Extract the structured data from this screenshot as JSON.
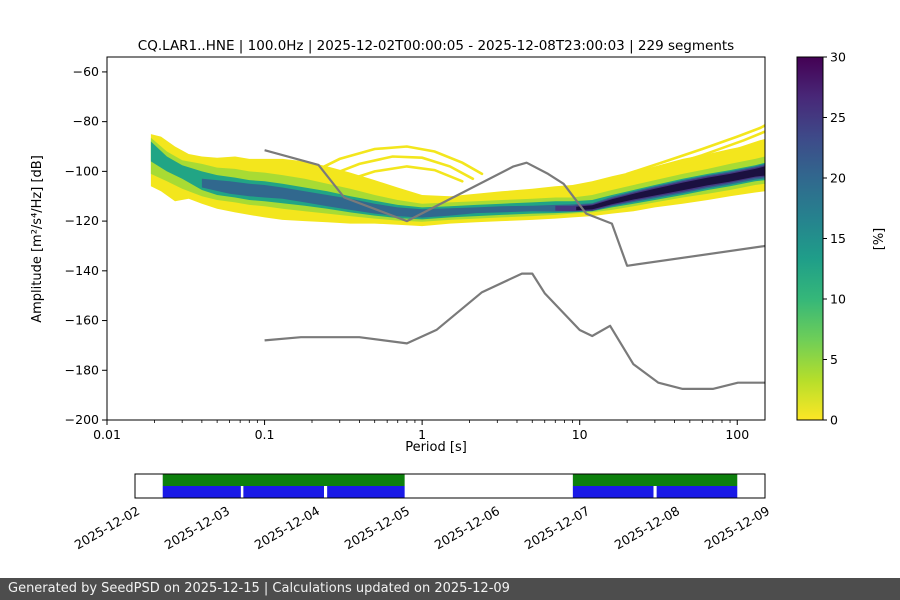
{
  "footer_text": "Generated by SeedPSD on 2025-12-15 | Calculations updated on 2025-12-09",
  "chart_data": {
    "type": "heatmap",
    "title": "CQ.LAR1..HNE | 100.0Hz | 2025-12-02T00:00:05 - 2025-12-08T23:00:03 | 229 segments",
    "station_id": "CQ.LAR1..HNE",
    "sampling_rate_hz": 100.0,
    "time_range": [
      "2025-12-02T00:00:05",
      "2025-12-08T23:00:03"
    ],
    "segments": 229,
    "xlabel": "Period [s]",
    "ylabel": "Amplitude [m²/s⁴/Hz] [dB]",
    "xscale": "log",
    "xlim": [
      0.01,
      150
    ],
    "ylim": [
      -200,
      -54
    ],
    "x_ticks": [
      0.01,
      0.1,
      1,
      10,
      100
    ],
    "x_tick_labels": [
      "0.01",
      "0.1",
      "1",
      "10",
      "100"
    ],
    "y_ticks": [
      -60,
      -80,
      -100,
      -120,
      -140,
      -160,
      -180,
      -200
    ],
    "y_tick_labels": [
      "−60",
      "−80",
      "−100",
      "−120",
      "−140",
      "−160",
      "−180",
      "−200"
    ],
    "colorbar": {
      "label": "[%]",
      "min": 0,
      "max": 30,
      "ticks": [
        0,
        5,
        10,
        15,
        20,
        25,
        30
      ],
      "gradient_top_to_bottom": [
        "#440154",
        "#482878",
        "#3e4a89",
        "#31688e",
        "#26828e",
        "#1f9e89",
        "#35b779",
        "#6ece58",
        "#b5de2b",
        "#fde725"
      ]
    },
    "noise_models": {
      "color": "#7a7a7a",
      "high": [
        [
          0.1,
          -91.5
        ],
        [
          0.22,
          -97.4
        ],
        [
          0.32,
          -110.5
        ],
        [
          0.8,
          -120.0
        ],
        [
          3.8,
          -98.0
        ],
        [
          4.6,
          -96.5
        ],
        [
          6.3,
          -101.0
        ],
        [
          7.9,
          -105.0
        ],
        [
          11.0,
          -117.0
        ],
        [
          16.0,
          -121.0
        ],
        [
          20.0,
          -138.0
        ],
        [
          150,
          -130.0
        ]
      ],
      "low": [
        [
          0.1,
          -168.0
        ],
        [
          0.17,
          -166.7
        ],
        [
          0.4,
          -166.7
        ],
        [
          0.8,
          -169.2
        ],
        [
          1.24,
          -163.7
        ],
        [
          2.4,
          -148.6
        ],
        [
          4.3,
          -141.1
        ],
        [
          5.0,
          -141.1
        ],
        [
          6.0,
          -149.0
        ],
        [
          10.0,
          -163.8
        ],
        [
          12.0,
          -166.2
        ],
        [
          15.6,
          -162.1
        ],
        [
          21.9,
          -177.5
        ],
        [
          31.6,
          -185.0
        ],
        [
          45.0,
          -187.5
        ],
        [
          70.0,
          -187.5
        ],
        [
          101.0,
          -185.0
        ],
        [
          150.0,
          -185.0
        ]
      ]
    },
    "curve_color": "#f3e61d",
    "ppsd_layers": [
      {
        "name": "outer-1pct",
        "color": "#f3e61d",
        "points": [
          [
            0.019,
            -85,
            -106
          ],
          [
            0.022,
            -86,
            -108
          ],
          [
            0.027,
            -90,
            -112
          ],
          [
            0.033,
            -93,
            -111
          ],
          [
            0.04,
            -94,
            -113
          ],
          [
            0.05,
            -94.5,
            -115
          ],
          [
            0.065,
            -94,
            -116.5
          ],
          [
            0.08,
            -95,
            -117.5
          ],
          [
            0.1,
            -95,
            -118.5
          ],
          [
            0.13,
            -95,
            -119.5
          ],
          [
            0.18,
            -96,
            -120
          ],
          [
            0.25,
            -98,
            -120.5
          ],
          [
            0.35,
            -100.5,
            -121
          ],
          [
            0.5,
            -103.5,
            -121
          ],
          [
            0.7,
            -106.5,
            -121.5
          ],
          [
            1.0,
            -109.5,
            -122
          ],
          [
            1.5,
            -110,
            -121
          ],
          [
            2.2,
            -109,
            -120.5
          ],
          [
            3.2,
            -108,
            -120
          ],
          [
            5,
            -107,
            -119.5
          ],
          [
            7,
            -106,
            -119
          ],
          [
            9,
            -105.5,
            -118.5
          ],
          [
            12,
            -104,
            -118
          ],
          [
            16,
            -102,
            -117
          ],
          [
            22,
            -100,
            -116
          ],
          [
            30,
            -98,
            -114.5
          ],
          [
            45,
            -95,
            -113
          ],
          [
            65,
            -93,
            -111.5
          ],
          [
            90,
            -91,
            -110
          ],
          [
            130,
            -89,
            -108.5
          ],
          [
            150,
            -87.5,
            -108
          ]
        ]
      },
      {
        "name": "green-6pct",
        "color": "#a8db34",
        "points": [
          [
            0.019,
            -86.5,
            -101
          ],
          [
            0.024,
            -92,
            -104
          ],
          [
            0.03,
            -95.5,
            -107
          ],
          [
            0.04,
            -97,
            -110
          ],
          [
            0.05,
            -98.5,
            -111.5
          ],
          [
            0.065,
            -99,
            -112.5
          ],
          [
            0.08,
            -100,
            -113.5
          ],
          [
            0.1,
            -100.5,
            -114
          ],
          [
            0.13,
            -101.5,
            -115
          ],
          [
            0.18,
            -103,
            -116
          ],
          [
            0.25,
            -105,
            -117
          ],
          [
            0.35,
            -107,
            -118
          ],
          [
            0.5,
            -109.5,
            -119
          ],
          [
            0.7,
            -111.5,
            -119.8
          ],
          [
            1.0,
            -113,
            -120.3
          ],
          [
            1.5,
            -112.5,
            -119.5
          ],
          [
            2.2,
            -112,
            -119
          ],
          [
            3.2,
            -111.5,
            -118.5
          ],
          [
            5,
            -111,
            -118
          ],
          [
            7,
            -110.5,
            -117.5
          ],
          [
            9,
            -110.5,
            -117
          ],
          [
            12,
            -109.5,
            -116.5
          ],
          [
            16,
            -107.5,
            -115.5
          ],
          [
            22,
            -105.5,
            -114
          ],
          [
            30,
            -103.5,
            -112.5
          ],
          [
            45,
            -101,
            -110.5
          ],
          [
            65,
            -99,
            -109
          ],
          [
            90,
            -97,
            -107.5
          ],
          [
            130,
            -95,
            -105.5
          ],
          [
            150,
            -94,
            -105
          ]
        ]
      },
      {
        "name": "teal-13pct",
        "color": "#21a585",
        "points": [
          [
            0.019,
            -88,
            -96
          ],
          [
            0.024,
            -94,
            -100
          ],
          [
            0.03,
            -97.5,
            -103
          ],
          [
            0.04,
            -100,
            -107.5
          ],
          [
            0.05,
            -101.5,
            -109.5
          ],
          [
            0.065,
            -102.5,
            -110.5
          ],
          [
            0.08,
            -103.5,
            -111.5
          ],
          [
            0.1,
            -104,
            -112
          ],
          [
            0.13,
            -105,
            -112.8
          ],
          [
            0.18,
            -106.5,
            -113.8
          ],
          [
            0.25,
            -108,
            -115
          ],
          [
            0.35,
            -110,
            -116.5
          ],
          [
            0.5,
            -111.8,
            -117.8
          ],
          [
            0.7,
            -113.5,
            -118.8
          ],
          [
            1.0,
            -114.5,
            -119.3
          ],
          [
            1.5,
            -114,
            -118.5
          ],
          [
            2.2,
            -113.5,
            -118
          ],
          [
            3.2,
            -113,
            -117.5
          ],
          [
            5,
            -112.5,
            -117
          ],
          [
            7,
            -112,
            -116.8
          ],
          [
            9,
            -112,
            -116.5
          ],
          [
            12,
            -111.5,
            -116
          ],
          [
            16,
            -109.5,
            -114.5
          ],
          [
            22,
            -107.5,
            -113
          ],
          [
            30,
            -105.5,
            -111.5
          ],
          [
            45,
            -103,
            -109.5
          ],
          [
            65,
            -101,
            -107.5
          ],
          [
            90,
            -99.5,
            -106
          ],
          [
            130,
            -97.5,
            -104
          ],
          [
            150,
            -96.5,
            -103.5
          ]
        ]
      },
      {
        "name": "blue-20pct",
        "color": "#31688e",
        "points": [
          [
            0.04,
            -103,
            -106.5
          ],
          [
            0.06,
            -104,
            -109
          ],
          [
            0.08,
            -105,
            -110
          ],
          [
            0.1,
            -105.5,
            -110.5
          ],
          [
            0.13,
            -106.5,
            -111
          ],
          [
            0.18,
            -108,
            -112.5
          ],
          [
            0.25,
            -109.5,
            -114
          ],
          [
            0.35,
            -111,
            -115.5
          ],
          [
            0.5,
            -113,
            -117
          ],
          [
            0.7,
            -114.5,
            -118
          ],
          [
            1.0,
            -115.2,
            -118.6
          ],
          [
            1.5,
            -114.8,
            -117.8
          ],
          [
            2.2,
            -114.5,
            -116.8
          ],
          [
            3.2,
            -114,
            -116.5
          ],
          [
            5,
            -113.8,
            -116
          ],
          [
            7,
            -113.5,
            -116.2
          ],
          [
            9,
            -113.3,
            -116.1
          ],
          [
            12,
            -112.8,
            -115.9
          ],
          [
            16,
            -110.2,
            -114
          ],
          [
            22,
            -108,
            -112.3
          ],
          [
            30,
            -106,
            -110.8
          ],
          [
            45,
            -103.5,
            -108.8
          ],
          [
            65,
            -101.5,
            -106.8
          ],
          [
            90,
            -100,
            -105.3
          ],
          [
            130,
            -98,
            -103.3
          ],
          [
            150,
            -97,
            -102.8
          ]
        ]
      },
      {
        "name": "dark-26pct",
        "color": "#453781",
        "points": [
          [
            7,
            -113.8,
            -115.8
          ],
          [
            9,
            -113.8,
            -116
          ],
          [
            12,
            -113.2,
            -115.8
          ],
          [
            16,
            -110.8,
            -113.6
          ],
          [
            22,
            -108.5,
            -111.8
          ],
          [
            30,
            -106.5,
            -110.2
          ],
          [
            45,
            -104,
            -108.2
          ],
          [
            65,
            -102,
            -106.2
          ],
          [
            90,
            -100.5,
            -104.6
          ],
          [
            130,
            -98.5,
            -102.6
          ],
          [
            150,
            -97.5,
            -102.2
          ]
        ]
      },
      {
        "name": "darkest-30pct",
        "color": "#1b1040",
        "points": [
          [
            9.5,
            -114.2,
            -115.6
          ],
          [
            12,
            -113.6,
            -115.3
          ],
          [
            16,
            -111.2,
            -113.2
          ],
          [
            22,
            -109,
            -111.3
          ],
          [
            30,
            -107,
            -109.7
          ],
          [
            45,
            -104.5,
            -107.6
          ],
          [
            65,
            -102.5,
            -105.6
          ],
          [
            90,
            -101,
            -104.1
          ],
          [
            130,
            -99,
            -102.1
          ],
          [
            150,
            -98,
            -101.7
          ]
        ]
      }
    ],
    "yellow_curves": [
      [
        [
          0.2,
          -100.5
        ],
        [
          0.3,
          -95
        ],
        [
          0.5,
          -91
        ],
        [
          0.8,
          -90
        ],
        [
          1.2,
          -92
        ],
        [
          1.8,
          -96.5
        ],
        [
          2.4,
          -101
        ]
      ],
      [
        [
          0.25,
          -102
        ],
        [
          0.4,
          -97
        ],
        [
          0.65,
          -94
        ],
        [
          1.0,
          -94.5
        ],
        [
          1.5,
          -98
        ],
        [
          2.1,
          -103
        ]
      ],
      [
        [
          0.3,
          -104.5
        ],
        [
          0.5,
          -100
        ],
        [
          0.8,
          -98
        ],
        [
          1.2,
          -99.5
        ],
        [
          1.8,
          -104
        ]
      ],
      [
        [
          20,
          -101
        ],
        [
          35,
          -96
        ],
        [
          60,
          -91
        ],
        [
          100,
          -86
        ],
        [
          140,
          -82.5
        ],
        [
          150,
          -81.5
        ]
      ],
      [
        [
          28,
          -100
        ],
        [
          60,
          -93.5
        ],
        [
          110,
          -87.5
        ],
        [
          150,
          -84
        ]
      ],
      [
        [
          45,
          -98
        ],
        [
          90,
          -92
        ],
        [
          140,
          -88
        ],
        [
          150,
          -87.5
        ]
      ]
    ],
    "timeline": {
      "start": "2025-12-02",
      "end": "2025-12-09",
      "day_labels": [
        "2025-12-02",
        "2025-12-03",
        "2025-12-04",
        "2025-12-05",
        "2025-12-06",
        "2025-12-07",
        "2025-12-08",
        "2025-12-09"
      ],
      "green_color": "#0d800d",
      "blue_color": "#1a1ae6",
      "green_segments": [
        [
          0.044,
          0.428
        ],
        [
          0.695,
          0.956
        ]
      ],
      "blue_segments": [
        [
          0.044,
          0.168
        ],
        [
          0.172,
          0.3
        ],
        [
          0.305,
          0.428
        ],
        [
          0.695,
          0.823
        ],
        [
          0.828,
          0.956
        ]
      ]
    }
  }
}
